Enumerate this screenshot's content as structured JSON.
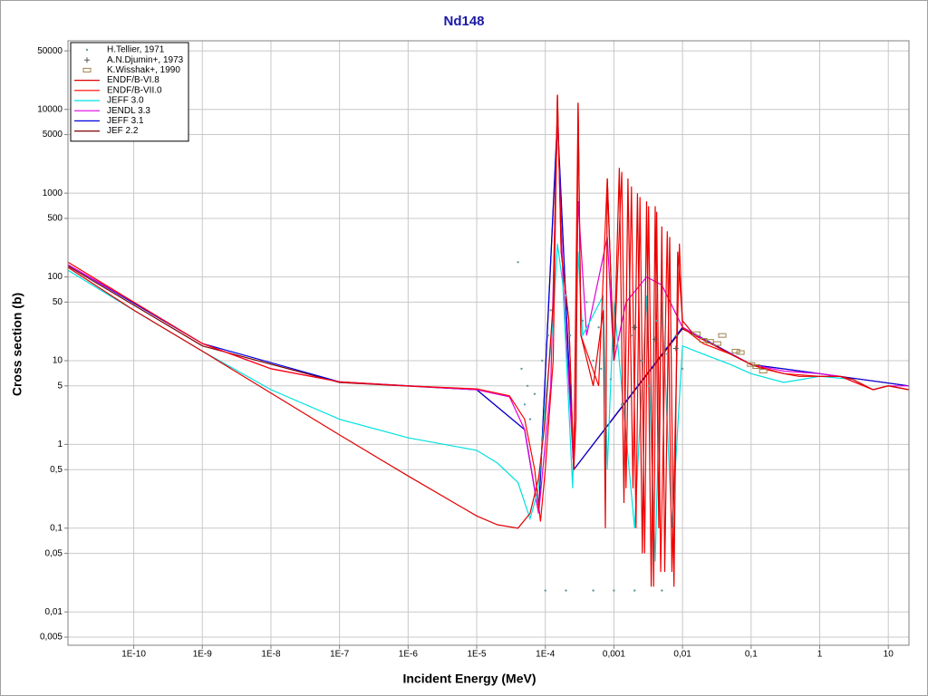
{
  "chart_data": {
    "type": "line",
    "title": "Nd148",
    "x_label": "Incident Energy (MeV)",
    "y_label": "Cross section (b)",
    "xscale": "log",
    "yscale": "log",
    "grid": true,
    "legend": "upper left",
    "xlim": [
      1.1e-11,
      20
    ],
    "ylim": [
      0.004,
      66000
    ],
    "xticks": [
      {
        "value": 1e-10,
        "label": "1E-10"
      },
      {
        "value": 1e-09,
        "label": "1E-9"
      },
      {
        "value": 1e-08,
        "label": "1E-8"
      },
      {
        "value": 1e-07,
        "label": "1E-7"
      },
      {
        "value": 1e-06,
        "label": "1E-6"
      },
      {
        "value": 1e-05,
        "label": "1E-5"
      },
      {
        "value": 0.0001,
        "label": "1E-4"
      },
      {
        "value": 0.001,
        "label": "0,001"
      },
      {
        "value": 0.01,
        "label": "0,01"
      },
      {
        "value": 0.1,
        "label": "0,1"
      },
      1,
      10
    ],
    "yticks": [
      {
        "value": 0.005,
        "label": "0,005"
      },
      {
        "value": 0.01,
        "label": "0,01"
      },
      {
        "value": 0.05,
        "label": "0,05"
      },
      {
        "value": 0.1,
        "label": "0,1"
      },
      {
        "value": 0.5,
        "label": "0,5"
      },
      1,
      5,
      10,
      50,
      100,
      500,
      1000,
      5000,
      10000,
      50000
    ],
    "series": [
      {
        "name": "H.Tellier, 1971",
        "kind": "scatter",
        "marker": "dot",
        "color": "#5f9ea0",
        "x": [
          4e-05,
          4.5e-05,
          5e-05,
          5.5e-05,
          6e-05,
          7e-05,
          9e-05,
          0.00011,
          0.00012,
          0.0002,
          0.00023,
          0.00035,
          0.0004,
          0.0005,
          0.0006,
          0.00065,
          0.0009,
          0.0011,
          0.0013,
          0.0018,
          0.0025,
          0.0032,
          0.0042,
          0.006,
          0.008,
          0.01,
          0.0001,
          0.0002,
          0.0005,
          0.001,
          0.002,
          0.005
        ],
        "values": [
          150,
          8,
          3,
          5,
          2,
          4,
          10,
          20,
          40,
          60,
          20,
          30,
          50,
          10,
          25,
          8,
          6,
          15,
          3,
          20,
          10,
          5,
          30,
          12,
          20,
          8,
          0.018,
          0.018,
          0.018,
          0.018,
          0.018,
          0.018
        ]
      },
      {
        "name": "A.N.Djumin+, 1973",
        "kind": "scatter",
        "marker": "plus",
        "color": "#555555",
        "x": [
          0.002,
          0.004,
          0.008
        ],
        "values": [
          25,
          18,
          14
        ]
      },
      {
        "name": "K.Wisshak+, 1990",
        "kind": "scatter",
        "marker": "box",
        "color": "#a0824b",
        "x": [
          0.016,
          0.02,
          0.025,
          0.032,
          0.038,
          0.06,
          0.07,
          0.1,
          0.12,
          0.15
        ],
        "values": [
          21,
          17.5,
          17,
          16,
          20,
          13,
          12.5,
          9,
          8.5,
          7.5
        ]
      },
      {
        "name": "ENDF/B-VI.8",
        "kind": "line",
        "color": "#e00000",
        "x": [
          1.1e-11,
          1e-10,
          1e-09,
          1e-08,
          1e-07,
          1e-06,
          1e-05,
          2e-05,
          4e-05,
          6e-05,
          8e-05,
          0.0001,
          0.00013,
          0.00015,
          0.00017,
          0.00022,
          0.00026,
          0.00028,
          0.0003,
          0.00033,
          0.0005,
          0.0007,
          0.00075,
          0.0008,
          0.001,
          0.0012,
          0.0014,
          0.0016,
          0.0019,
          0.0022,
          0.0026,
          0.003,
          0.0035,
          0.004,
          0.0045,
          0.005,
          0.0055,
          0.0065,
          0.0075,
          0.0085,
          0.01,
          0.015,
          0.03,
          0.05,
          0.1,
          0.15,
          0.3,
          0.5,
          1,
          2,
          3,
          6,
          10,
          20
        ],
        "values": [
          130,
          40,
          13,
          4.1,
          1.3,
          0.42,
          0.14,
          0.11,
          0.1,
          0.15,
          0.4,
          2,
          50,
          15000,
          200,
          30,
          0.5,
          2,
          12000,
          20,
          5,
          40,
          0.1,
          1500,
          10,
          2000,
          0.2,
          1500,
          0.3,
          1000,
          0.05,
          800,
          0.02,
          700,
          0.1,
          400,
          0.03,
          300,
          0.02,
          200,
          30,
          20,
          15,
          12,
          9,
          8,
          7,
          6.5,
          6.5,
          6.5,
          6,
          4.5,
          5,
          4.5
        ]
      },
      {
        "name": "ENDF/B-VII.0",
        "kind": "line",
        "color": "#ff0000",
        "x": [
          1.1e-11,
          1e-10,
          1e-09,
          1e-08,
          1e-07,
          1e-06,
          1e-05,
          3e-05,
          5e-05,
          7e-05,
          8.5e-05,
          0.0001,
          0.00013,
          0.00015,
          0.00017,
          0.00022,
          0.00026,
          0.0003,
          0.00033,
          0.0006,
          0.0008,
          0.001,
          0.0013,
          0.0015,
          0.0018,
          0.0021,
          0.0024,
          0.0028,
          0.0032,
          0.0038,
          0.0042,
          0.0048,
          0.006,
          0.007,
          0.009,
          0.01,
          0.02,
          0.05,
          0.1,
          0.3,
          1,
          2,
          6,
          10,
          20
        ],
        "values": [
          150,
          50,
          16,
          8,
          5.6,
          5,
          4.6,
          3.8,
          2,
          0.5,
          0.12,
          0.5,
          10,
          15000,
          200,
          30,
          0.5,
          12000,
          20,
          5,
          1500,
          10,
          1800,
          0.3,
          1200,
          0.1,
          900,
          0.05,
          700,
          0.02,
          600,
          0.03,
          350,
          0.03,
          250,
          25,
          16,
          12,
          9,
          7,
          6.5,
          6.5,
          4.5,
          5,
          4.5
        ]
      },
      {
        "name": "JEFF 3.0",
        "kind": "line",
        "color": "#00e0e0",
        "x": [
          1.1e-11,
          1e-10,
          1e-09,
          1e-08,
          1e-07,
          1e-06,
          1e-05,
          2e-05,
          4e-05,
          6e-05,
          8e-05,
          0.0001,
          0.00013,
          0.00015,
          0.00018,
          0.00025,
          0.0003,
          0.00035,
          0.0007,
          0.0008,
          0.001,
          0.002,
          0.003,
          0.004,
          0.005,
          0.007,
          0.01,
          0.02,
          0.05,
          0.1,
          0.3,
          1,
          3,
          6,
          10,
          20
        ],
        "values": [
          120,
          40,
          13,
          4.5,
          2,
          1.2,
          0.85,
          0.6,
          0.35,
          0.13,
          0.3,
          3,
          30,
          250,
          80,
          0.3,
          200,
          20,
          60,
          0.5,
          50,
          0.1,
          60,
          0.04,
          50,
          0.1,
          15,
          12,
          9,
          7,
          5.5,
          6.5,
          6,
          4.5,
          5,
          4.5
        ]
      },
      {
        "name": "JENDL 3.3",
        "kind": "line",
        "color": "#e000e0",
        "x": [
          1.1e-11,
          1e-10,
          1e-09,
          1e-08,
          1e-07,
          1e-06,
          1e-05,
          3e-05,
          5e-05,
          8e-05,
          0.00012,
          0.00015,
          0.00018,
          0.00026,
          0.0003,
          0.0004,
          0.0008,
          0.001,
          0.0015,
          0.003,
          0.005,
          0.01,
          0.03,
          0.1,
          0.3,
          1,
          2,
          6,
          10,
          20
        ],
        "values": [
          140,
          50,
          16,
          8,
          5.6,
          5,
          4.5,
          3.7,
          1.5,
          0.15,
          5,
          8000,
          100,
          0.5,
          800,
          20,
          300,
          10,
          50,
          100,
          80,
          25,
          15,
          9,
          7.5,
          7,
          6.5,
          4.5,
          5,
          5
        ]
      },
      {
        "name": "JEFF 3.1",
        "kind": "line",
        "color": "#0000e0",
        "x": [
          1.1e-11,
          1e-09,
          1e-07,
          1e-05,
          5e-05,
          8e-05,
          0.00015,
          0.00026,
          0.01,
          0.1,
          1,
          20
        ],
        "values": [
          140,
          16,
          5.6,
          4.5,
          1.5,
          0.15,
          8000,
          0.5,
          25,
          9,
          7,
          5
        ]
      },
      {
        "name": "JEF 2.2",
        "kind": "line",
        "color": "#800000",
        "x": [
          1.1e-11,
          1e-09,
          1e-07,
          1e-05,
          5e-05,
          8e-05,
          0.00015,
          0.00026,
          0.01,
          0.1,
          1,
          20
        ],
        "values": [
          135,
          15,
          5.5,
          4.5,
          1.5,
          0.15,
          7000,
          0.5,
          24,
          9,
          7,
          5
        ]
      }
    ]
  }
}
